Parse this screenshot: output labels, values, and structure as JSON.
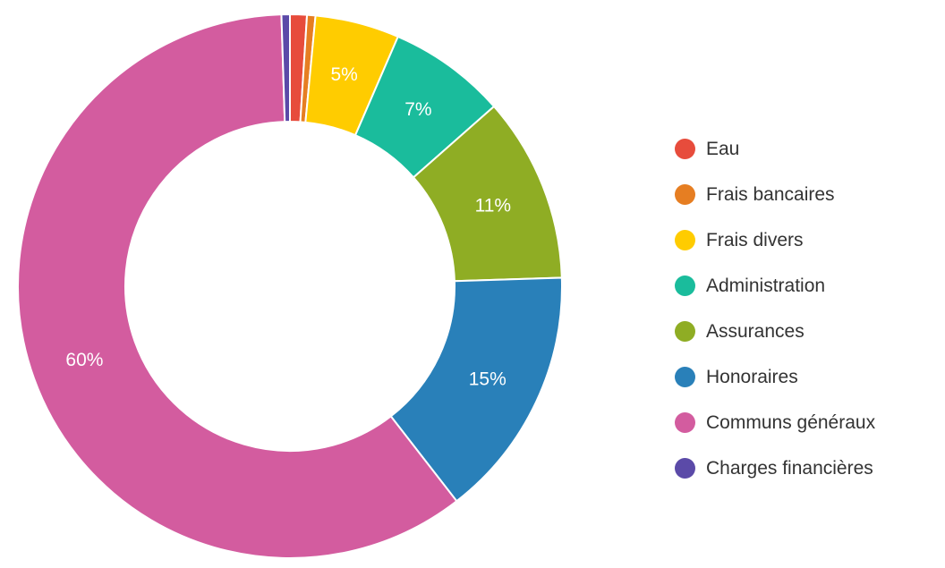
{
  "chart_data": {
    "type": "pie",
    "donut": true,
    "categories": [
      "Eau",
      "Frais bancaires",
      "Frais divers",
      "Administration",
      "Assurances",
      "Honoraires",
      "Communs généraux",
      "Charges financières"
    ],
    "values": [
      1,
      0.5,
      5,
      7,
      11,
      15,
      60,
      0.5
    ],
    "data_labels": [
      "",
      "",
      "5%",
      "7%",
      "11%",
      "15%",
      "60%",
      ""
    ],
    "colors": [
      "#e74c3c",
      "#e67e22",
      "#ffcc00",
      "#1abc9c",
      "#8fad24",
      "#2980b9",
      "#d35c9f",
      "#5b4aa8"
    ],
    "legend_position": "right"
  }
}
